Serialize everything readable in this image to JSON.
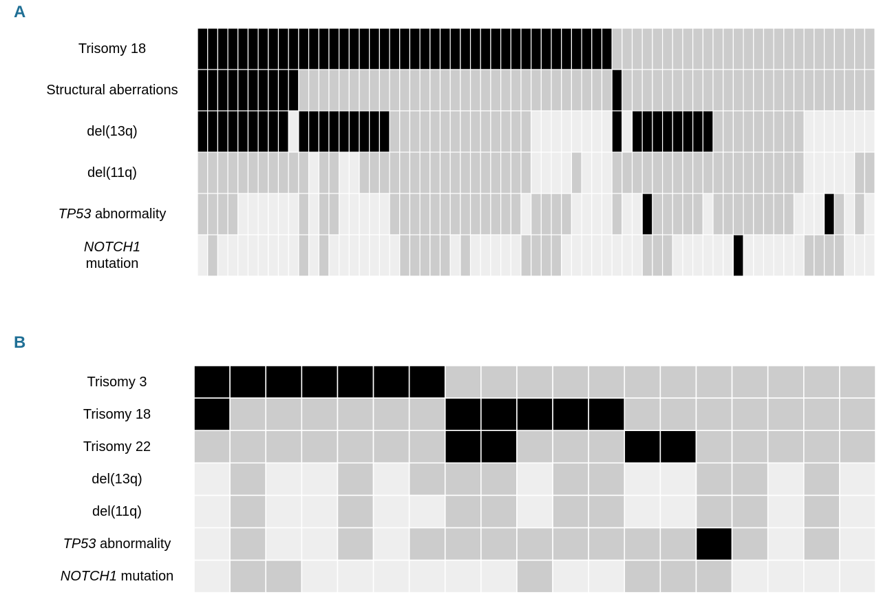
{
  "panels": {
    "a": {
      "letter": "A"
    },
    "b": {
      "letter": "B"
    }
  },
  "legend_colors": {
    "present": "#000000",
    "absent": "#cccccc",
    "not_available": "#eeeeee"
  },
  "chart_data": [
    {
      "type": "heatmap",
      "panel": "A",
      "value_key": {
        "1": "present",
        "0": "absent",
        "-1": "not available"
      },
      "rows": [
        {
          "label": "Trisomy 18",
          "italic_part": "",
          "plain_part": "Trisomy 18",
          "values": [
            1,
            1,
            1,
            1,
            1,
            1,
            1,
            1,
            1,
            1,
            1,
            1,
            1,
            1,
            1,
            1,
            1,
            1,
            1,
            1,
            1,
            1,
            1,
            1,
            1,
            1,
            1,
            1,
            1,
            1,
            1,
            1,
            1,
            1,
            1,
            1,
            1,
            1,
            1,
            1,
            1,
            0,
            0,
            0,
            0,
            0,
            0,
            0,
            0,
            0,
            0,
            0,
            0,
            0,
            0,
            0,
            0,
            0,
            0,
            0,
            0,
            0,
            0,
            0,
            0,
            0,
            0
          ]
        },
        {
          "label": "Structural aberrations",
          "italic_part": "",
          "plain_part": "Structural aberrations",
          "values": [
            1,
            1,
            1,
            1,
            1,
            1,
            1,
            1,
            1,
            1,
            0,
            0,
            0,
            0,
            0,
            0,
            0,
            0,
            0,
            0,
            0,
            0,
            0,
            0,
            0,
            0,
            0,
            0,
            0,
            0,
            0,
            0,
            0,
            0,
            0,
            0,
            0,
            0,
            0,
            0,
            0,
            1,
            0,
            0,
            0,
            0,
            0,
            0,
            0,
            0,
            0,
            0,
            0,
            0,
            0,
            0,
            0,
            0,
            0,
            0,
            0,
            0,
            0,
            0,
            0,
            0,
            0
          ]
        },
        {
          "label": "del(13q)",
          "italic_part": "",
          "plain_part": "del(13q)",
          "values": [
            1,
            1,
            1,
            1,
            1,
            1,
            1,
            1,
            1,
            -1,
            1,
            1,
            1,
            1,
            1,
            1,
            1,
            1,
            1,
            0,
            0,
            0,
            0,
            0,
            0,
            0,
            0,
            0,
            0,
            0,
            0,
            0,
            0,
            -1,
            -1,
            -1,
            -1,
            -1,
            -1,
            -1,
            -1,
            1,
            -1,
            1,
            1,
            1,
            1,
            1,
            1,
            1,
            1,
            0,
            0,
            0,
            0,
            0,
            0,
            0,
            0,
            0,
            -1,
            -1,
            -1,
            -1,
            -1,
            -1,
            -1
          ]
        },
        {
          "label": "del(11q)",
          "italic_part": "",
          "plain_part": "del(11q)",
          "values": [
            0,
            0,
            0,
            0,
            0,
            0,
            0,
            0,
            0,
            0,
            0,
            -1,
            0,
            0,
            -1,
            -1,
            0,
            0,
            0,
            0,
            0,
            0,
            0,
            0,
            0,
            0,
            0,
            0,
            0,
            0,
            0,
            0,
            0,
            -1,
            -1,
            -1,
            -1,
            0,
            -1,
            -1,
            -1,
            0,
            0,
            0,
            0,
            0,
            0,
            0,
            0,
            0,
            0,
            0,
            0,
            0,
            0,
            0,
            0,
            0,
            0,
            0,
            -1,
            -1,
            -1,
            -1,
            -1,
            0,
            0
          ]
        },
        {
          "label": "TP53 abnormality",
          "italic_part": "TP53",
          "plain_part": " abnormality",
          "values": [
            0,
            0,
            0,
            0,
            -1,
            -1,
            -1,
            -1,
            -1,
            -1,
            0,
            -1,
            0,
            0,
            -1,
            -1,
            -1,
            -1,
            -1,
            0,
            0,
            0,
            0,
            0,
            0,
            0,
            0,
            0,
            0,
            0,
            0,
            0,
            -1,
            0,
            0,
            0,
            0,
            -1,
            -1,
            -1,
            -1,
            0,
            -1,
            -1,
            1,
            0,
            0,
            0,
            0,
            0,
            -1,
            0,
            0,
            0,
            0,
            0,
            0,
            0,
            0,
            -1,
            -1,
            -1,
            1,
            0,
            -1,
            0,
            -1
          ]
        },
        {
          "label": "NOTCH1 mutation",
          "italic_part": "NOTCH1",
          "plain_part": "mutation",
          "values": [
            -1,
            0,
            -1,
            -1,
            -1,
            -1,
            -1,
            -1,
            -1,
            -1,
            0,
            -1,
            0,
            -1,
            -1,
            -1,
            -1,
            -1,
            -1,
            -1,
            0,
            0,
            0,
            0,
            0,
            -1,
            0,
            -1,
            -1,
            -1,
            -1,
            -1,
            0,
            0,
            0,
            0,
            -1,
            -1,
            -1,
            -1,
            -1,
            -1,
            -1,
            -1,
            0,
            0,
            0,
            -1,
            -1,
            -1,
            -1,
            -1,
            -1,
            1,
            -1,
            -1,
            -1,
            -1,
            -1,
            -1,
            0,
            0,
            0,
            0,
            -1,
            -1,
            -1
          ]
        }
      ]
    },
    {
      "type": "heatmap",
      "panel": "B",
      "value_key": {
        "1": "present",
        "0": "absent",
        "-1": "not available"
      },
      "rows": [
        {
          "label": "Trisomy 3",
          "italic_part": "",
          "plain_part": "Trisomy 3",
          "values": [
            1,
            1,
            1,
            1,
            1,
            1,
            1,
            0,
            0,
            0,
            0,
            0,
            0,
            0,
            0,
            0,
            0,
            0,
            0
          ]
        },
        {
          "label": "Trisomy 18",
          "italic_part": "",
          "plain_part": "Trisomy 18",
          "values": [
            1,
            0,
            0,
            0,
            0,
            0,
            0,
            1,
            1,
            1,
            1,
            1,
            0,
            0,
            0,
            0,
            0,
            0,
            0
          ]
        },
        {
          "label": "Trisomy 22",
          "italic_part": "",
          "plain_part": "Trisomy 22",
          "values": [
            0,
            0,
            0,
            0,
            0,
            0,
            0,
            1,
            1,
            0,
            0,
            0,
            1,
            1,
            0,
            0,
            0,
            0,
            0
          ]
        },
        {
          "label": "del(13q)",
          "italic_part": "",
          "plain_part": "del(13q)",
          "values": [
            -1,
            0,
            -1,
            -1,
            0,
            -1,
            0,
            0,
            0,
            -1,
            0,
            0,
            -1,
            -1,
            0,
            0,
            -1,
            0,
            -1
          ]
        },
        {
          "label": "del(11q)",
          "italic_part": "",
          "plain_part": "del(11q)",
          "values": [
            -1,
            0,
            -1,
            -1,
            0,
            -1,
            -1,
            0,
            0,
            -1,
            0,
            0,
            -1,
            -1,
            0,
            0,
            -1,
            0,
            -1
          ]
        },
        {
          "label": "TP53 abnormality",
          "italic_part": "TP53",
          "plain_part": " abnormality",
          "values": [
            -1,
            0,
            -1,
            -1,
            0,
            -1,
            0,
            0,
            0,
            0,
            0,
            0,
            0,
            0,
            1,
            0,
            -1,
            0,
            -1
          ]
        },
        {
          "label": "NOTCH1 mutation",
          "italic_part": "NOTCH1",
          "plain_part": " mutation",
          "values": [
            -1,
            0,
            0,
            -1,
            -1,
            -1,
            -1,
            -1,
            -1,
            0,
            -1,
            -1,
            0,
            0,
            0,
            -1,
            -1,
            -1,
            -1
          ]
        }
      ]
    }
  ]
}
